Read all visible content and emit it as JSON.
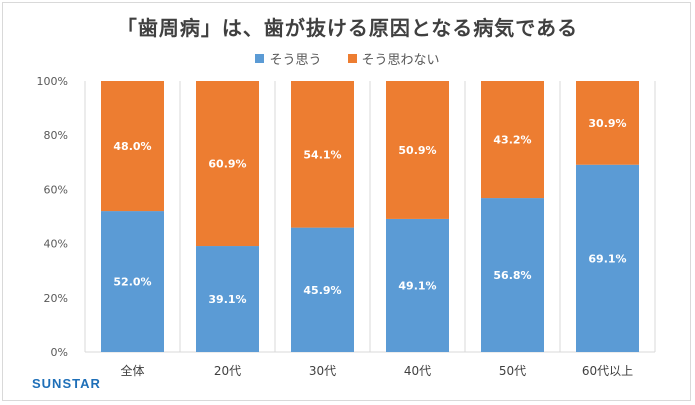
{
  "title": "「歯周病」は、歯が抜ける原因となる病気である",
  "brand": "SUNSTAR",
  "colors": {
    "agree": "#5b9bd5",
    "disagree": "#ed7d31",
    "grid": "#d9d9d9"
  },
  "chart_data": {
    "type": "bar",
    "stacked": true,
    "percent": true,
    "categories": [
      "全体",
      "20代",
      "30代",
      "40代",
      "50代",
      "60代以上"
    ],
    "series": [
      {
        "name": "そう思う",
        "values": [
          52.0,
          39.1,
          45.9,
          49.1,
          56.8,
          69.1
        ],
        "labels": [
          "52.0%",
          "39.1%",
          "45.9%",
          "49.1%",
          "56.8%",
          "69.1%"
        ]
      },
      {
        "name": "そう思わない",
        "values": [
          48.0,
          60.9,
          54.1,
          50.9,
          43.2,
          30.9
        ],
        "labels": [
          "48.0%",
          "60.9%",
          "54.1%",
          "50.9%",
          "43.2%",
          "30.9%"
        ]
      }
    ],
    "yticks": [
      0,
      20,
      40,
      60,
      80,
      100
    ],
    "ytick_labels": [
      "0%",
      "20%",
      "40%",
      "60%",
      "80%",
      "100%"
    ],
    "ylim": [
      0,
      100
    ],
    "legend": "top",
    "grid": "vertical"
  }
}
